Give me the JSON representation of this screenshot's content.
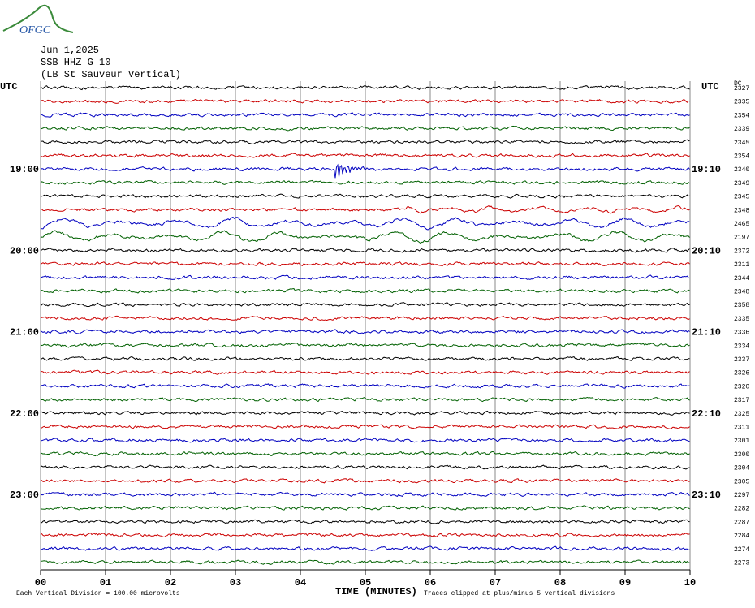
{
  "logo": "OFGC",
  "header": [
    "Jun 1,2025",
    "SSB HHZ G 10",
    "(LB  St Sauveur Vertical)"
  ],
  "left_axis": {
    "title": "UTC",
    "labels": [
      "19:00",
      "20:00",
      "21:00",
      "22:00",
      "23:00"
    ]
  },
  "right_axis": {
    "title": "UTC",
    "labels": [
      "19:10",
      "20:10",
      "21:10",
      "22:10",
      "23:10"
    ]
  },
  "dc_title": "DC",
  "dc_values": [
    "2327",
    "2335",
    "2354",
    "2339",
    "2345",
    "2354",
    "2340",
    "2349",
    "2345",
    "2348",
    "2465",
    "2197",
    "2372",
    "2311",
    "2344",
    "2348",
    "2358",
    "2335",
    "2336",
    "2334",
    "2337",
    "2326",
    "2320",
    "2317",
    "2325",
    "2311",
    "2301",
    "2300",
    "2304",
    "2305",
    "2297",
    "2282",
    "2287",
    "2284",
    "2274",
    "2273"
  ],
  "x_axis": {
    "title": "TIME (MINUTES)",
    "ticks": [
      "00",
      "01",
      "02",
      "03",
      "04",
      "05",
      "06",
      "07",
      "08",
      "09",
      "10"
    ]
  },
  "footer": {
    "left": "Each Vertical Division =  100.00 microvolts",
    "right": "Traces clipped at plus/minus 5 vertical divisions"
  }
}
